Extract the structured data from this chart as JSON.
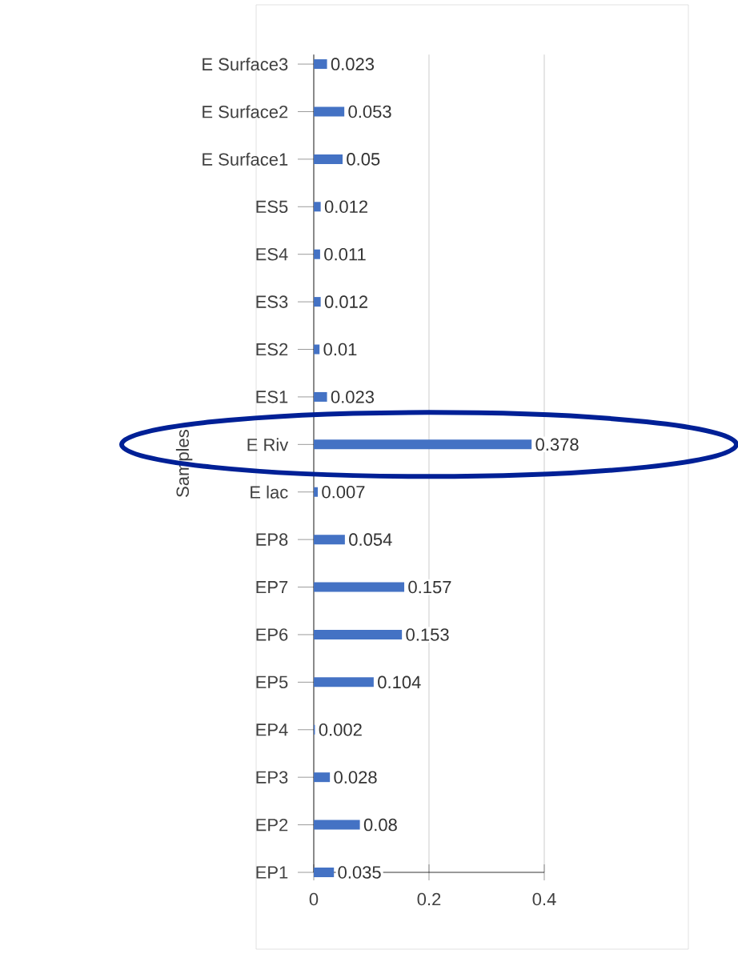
{
  "chart_data": {
    "type": "bar",
    "orientation": "horizontal",
    "ylabel": "Samples",
    "categories": [
      "E Surface3",
      "E Surface2",
      "E Surface1",
      "ES5",
      "ES4",
      "ES3",
      "ES2",
      "ES1",
      "E Riv",
      "E lac",
      "EP8",
      "EP7",
      "EP6",
      "EP5",
      "EP4",
      "EP3",
      "EP2",
      "EP1"
    ],
    "values": [
      0.023,
      0.053,
      0.05,
      0.012,
      0.011,
      0.012,
      0.01,
      0.023,
      0.378,
      0.007,
      0.054,
      0.157,
      0.153,
      0.104,
      0.002,
      0.028,
      0.08,
      0.035
    ],
    "color": "#4472c4",
    "xlim": [
      0,
      0.4
    ],
    "xticks": [
      0,
      0.2,
      0.4
    ],
    "grid": "x",
    "data_labels": true
  }
}
